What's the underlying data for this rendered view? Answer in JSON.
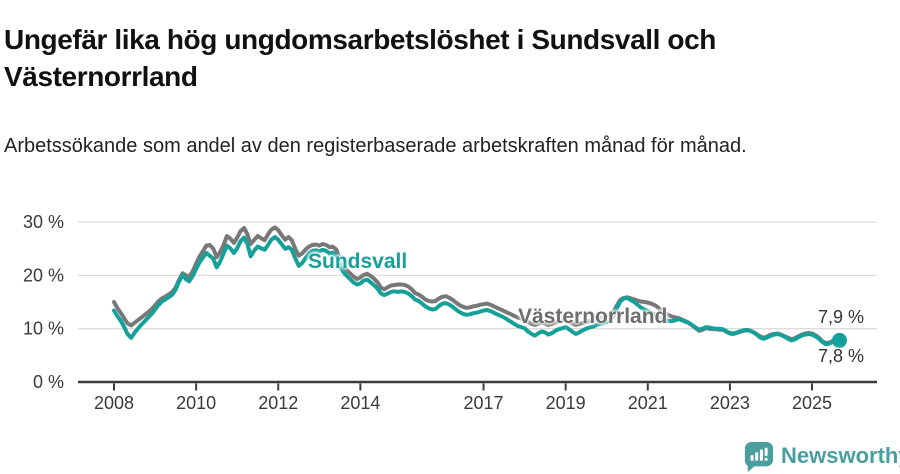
{
  "header": {
    "title": "Ungefär lika hög ungdomsarbetslöshet i Sundsvall och Västernorrland",
    "subtitle": "Arbetssökande som andel av den registerbaserade arbetskraften månad för månad."
  },
  "footer": {
    "brand": "Newsworthy",
    "brand_color": "#4a9e9e"
  },
  "chart_data": {
    "type": "line",
    "unit": "%",
    "grid": "horizontal",
    "grid_color": "#dcdcdc",
    "axis_color": "#3c3c3c",
    "ylim": [
      0,
      32
    ],
    "xlim": [
      2008,
      2026.6
    ],
    "legend_position": "inline-labels",
    "y_ticks": [
      {
        "value": 0,
        "label": "0 %"
      },
      {
        "value": 10,
        "label": "10 %"
      },
      {
        "value": 20,
        "label": "20 %"
      },
      {
        "value": 30,
        "label": "30 %"
      }
    ],
    "x_ticks": [
      {
        "value": 2008,
        "label": "2008"
      },
      {
        "value": 2010,
        "label": "2010"
      },
      {
        "value": 2012,
        "label": "2012"
      },
      {
        "value": 2014,
        "label": "2014"
      },
      {
        "value": 2017,
        "label": "2017"
      },
      {
        "value": 2019,
        "label": "2019"
      },
      {
        "value": 2021,
        "label": "2021"
      },
      {
        "value": 2023,
        "label": "2023"
      },
      {
        "value": 2025,
        "label": "2025"
      }
    ],
    "series": [
      {
        "name": "Sundsvall",
        "color": "#15a199",
        "end_label": "7,8 %",
        "end_value": 7.8
      },
      {
        "name": "Västernorrland",
        "color": "#787878",
        "end_label": "7,9 %",
        "end_value": 7.9
      }
    ],
    "points": [
      [
        2008.0,
        13.4,
        15.0
      ],
      [
        2008.08,
        12.4,
        13.9
      ],
      [
        2008.17,
        11.4,
        12.9
      ],
      [
        2008.25,
        10.3,
        11.9
      ],
      [
        2008.33,
        9.0,
        11.0
      ],
      [
        2008.42,
        8.3,
        10.6
      ],
      [
        2008.5,
        9.2,
        11.1
      ],
      [
        2008.58,
        10.0,
        11.6
      ],
      [
        2008.67,
        10.8,
        12.1
      ],
      [
        2008.75,
        11.4,
        12.6
      ],
      [
        2008.83,
        12.1,
        13.1
      ],
      [
        2008.92,
        12.8,
        13.7
      ],
      [
        2009.0,
        13.6,
        14.4
      ],
      [
        2009.08,
        14.4,
        15.1
      ],
      [
        2009.17,
        15.1,
        15.7
      ],
      [
        2009.25,
        15.5,
        16.0
      ],
      [
        2009.33,
        15.9,
        16.4
      ],
      [
        2009.42,
        16.4,
        16.9
      ],
      [
        2009.5,
        17.3,
        17.7
      ],
      [
        2009.58,
        18.8,
        19.1
      ],
      [
        2009.67,
        20.1,
        20.4
      ],
      [
        2009.75,
        19.3,
        20.0
      ],
      [
        2009.83,
        18.9,
        19.7
      ],
      [
        2009.92,
        19.9,
        20.8
      ],
      [
        2010.0,
        21.2,
        22.2
      ],
      [
        2010.08,
        22.4,
        23.5
      ],
      [
        2010.17,
        23.4,
        24.6
      ],
      [
        2010.25,
        24.2,
        25.6
      ],
      [
        2010.33,
        23.7,
        25.7
      ],
      [
        2010.42,
        23.1,
        25.0
      ],
      [
        2010.5,
        21.5,
        23.4
      ],
      [
        2010.58,
        22.5,
        24.3
      ],
      [
        2010.67,
        24.1,
        25.7
      ],
      [
        2010.75,
        25.6,
        27.4
      ],
      [
        2010.83,
        25.1,
        26.9
      ],
      [
        2010.92,
        24.2,
        26.1
      ],
      [
        2011.0,
        25.1,
        27.1
      ],
      [
        2011.08,
        26.4,
        28.3
      ],
      [
        2011.17,
        27.1,
        28.9
      ],
      [
        2011.25,
        25.9,
        27.7
      ],
      [
        2011.33,
        23.6,
        25.9
      ],
      [
        2011.42,
        24.7,
        26.7
      ],
      [
        2011.5,
        25.4,
        27.4
      ],
      [
        2011.58,
        25.1,
        27.0
      ],
      [
        2011.67,
        24.8,
        26.6
      ],
      [
        2011.75,
        25.7,
        27.7
      ],
      [
        2011.83,
        26.7,
        28.6
      ],
      [
        2011.92,
        27.2,
        29.0
      ],
      [
        2012.0,
        26.7,
        28.5
      ],
      [
        2012.08,
        25.9,
        27.6
      ],
      [
        2012.17,
        25.0,
        26.7
      ],
      [
        2012.25,
        25.3,
        27.2
      ],
      [
        2012.33,
        24.8,
        26.6
      ],
      [
        2012.42,
        23.1,
        24.9
      ],
      [
        2012.5,
        21.8,
        23.7
      ],
      [
        2012.58,
        22.3,
        24.1
      ],
      [
        2012.67,
        23.3,
        24.9
      ],
      [
        2012.75,
        24.1,
        25.4
      ],
      [
        2012.83,
        24.6,
        25.7
      ],
      [
        2012.92,
        24.7,
        25.8
      ],
      [
        2013.0,
        24.5,
        25.6
      ],
      [
        2013.08,
        24.8,
        25.9
      ],
      [
        2013.17,
        24.6,
        25.7
      ],
      [
        2013.25,
        24.1,
        25.3
      ],
      [
        2013.33,
        24.3,
        25.4
      ],
      [
        2013.42,
        23.7,
        24.8
      ],
      [
        2013.5,
        21.9,
        23.0
      ],
      [
        2013.58,
        20.7,
        21.8
      ],
      [
        2013.67,
        19.9,
        21.0
      ],
      [
        2013.75,
        19.3,
        20.4
      ],
      [
        2013.83,
        18.7,
        19.8
      ],
      [
        2013.92,
        18.3,
        19.3
      ],
      [
        2014.0,
        18.5,
        19.6
      ],
      [
        2014.08,
        19.0,
        20.1
      ],
      [
        2014.17,
        19.2,
        20.3
      ],
      [
        2014.25,
        18.7,
        19.9
      ],
      [
        2014.33,
        18.2,
        19.4
      ],
      [
        2014.42,
        17.5,
        18.7
      ],
      [
        2014.5,
        16.6,
        17.7
      ],
      [
        2014.58,
        16.3,
        17.4
      ],
      [
        2014.67,
        16.6,
        17.8
      ],
      [
        2014.75,
        16.9,
        18.1
      ],
      [
        2014.83,
        17.0,
        18.2
      ],
      [
        2014.92,
        16.9,
        18.3
      ],
      [
        2015.0,
        17.0,
        18.3
      ],
      [
        2015.08,
        16.9,
        18.2
      ],
      [
        2015.17,
        16.6,
        17.9
      ],
      [
        2015.25,
        16.1,
        17.4
      ],
      [
        2015.33,
        15.5,
        16.7
      ],
      [
        2015.42,
        15.2,
        16.4
      ],
      [
        2015.5,
        14.7,
        16.0
      ],
      [
        2015.58,
        14.2,
        15.5
      ],
      [
        2015.67,
        13.8,
        15.2
      ],
      [
        2015.75,
        13.6,
        15.1
      ],
      [
        2015.83,
        13.7,
        15.2
      ],
      [
        2015.92,
        14.3,
        15.7
      ],
      [
        2016.0,
        14.7,
        16.0
      ],
      [
        2016.08,
        14.8,
        16.1
      ],
      [
        2016.17,
        14.5,
        15.8
      ],
      [
        2016.25,
        14.1,
        15.4
      ],
      [
        2016.33,
        13.6,
        14.9
      ],
      [
        2016.42,
        13.1,
        14.4
      ],
      [
        2016.5,
        12.8,
        14.1
      ],
      [
        2016.58,
        12.6,
        13.9
      ],
      [
        2016.67,
        12.7,
        14.0
      ],
      [
        2016.75,
        12.9,
        14.2
      ],
      [
        2016.83,
        13.0,
        14.3
      ],
      [
        2016.92,
        13.2,
        14.5
      ],
      [
        2017.0,
        13.4,
        14.6
      ],
      [
        2017.08,
        13.5,
        14.7
      ],
      [
        2017.17,
        13.3,
        14.5
      ],
      [
        2017.25,
        13.0,
        14.2
      ],
      [
        2017.33,
        12.7,
        13.9
      ],
      [
        2017.42,
        12.4,
        13.6
      ],
      [
        2017.5,
        12.1,
        13.3
      ],
      [
        2017.58,
        11.7,
        13.0
      ],
      [
        2017.67,
        11.3,
        12.7
      ],
      [
        2017.75,
        10.9,
        12.4
      ],
      [
        2017.83,
        10.5,
        12.1
      ],
      [
        2017.92,
        10.3,
        11.9
      ],
      [
        2018.0,
        10.1,
        11.7
      ],
      [
        2018.08,
        9.5,
        11.3
      ],
      [
        2018.17,
        9.0,
        10.9
      ],
      [
        2018.25,
        8.7,
        10.7
      ],
      [
        2018.33,
        9.1,
        10.9
      ],
      [
        2018.42,
        9.5,
        11.2
      ],
      [
        2018.5,
        9.3,
        11.0
      ],
      [
        2018.58,
        8.9,
        10.7
      ],
      [
        2018.67,
        9.2,
        10.9
      ],
      [
        2018.75,
        9.6,
        11.2
      ],
      [
        2018.83,
        9.9,
        11.4
      ],
      [
        2018.92,
        10.1,
        11.5
      ],
      [
        2019.0,
        10.3,
        11.6
      ],
      [
        2019.08,
        9.9,
        11.3
      ],
      [
        2019.17,
        9.4,
        11.0
      ],
      [
        2019.25,
        9.0,
        10.7
      ],
      [
        2019.33,
        9.3,
        10.9
      ],
      [
        2019.42,
        9.7,
        11.1
      ],
      [
        2019.5,
        10.0,
        11.3
      ],
      [
        2019.58,
        10.2,
        11.5
      ],
      [
        2019.67,
        10.4,
        11.7
      ],
      [
        2019.75,
        10.7,
        11.9
      ],
      [
        2019.83,
        10.9,
        12.0
      ],
      [
        2019.92,
        11.1,
        12.2
      ],
      [
        2020.0,
        11.3,
        12.4
      ],
      [
        2020.08,
        11.6,
        12.6
      ],
      [
        2020.17,
        12.5,
        13.3
      ],
      [
        2020.25,
        13.9,
        14.4
      ],
      [
        2020.33,
        15.1,
        15.4
      ],
      [
        2020.42,
        15.7,
        15.8
      ],
      [
        2020.5,
        15.8,
        15.9
      ],
      [
        2020.58,
        15.4,
        15.7
      ],
      [
        2020.67,
        15.0,
        15.5
      ],
      [
        2020.75,
        14.5,
        15.3
      ],
      [
        2020.83,
        14.0,
        15.1
      ],
      [
        2020.92,
        13.6,
        15.0
      ],
      [
        2021.0,
        13.3,
        14.9
      ],
      [
        2021.08,
        13.0,
        14.7
      ],
      [
        2021.17,
        12.7,
        14.4
      ],
      [
        2021.25,
        12.3,
        14.0
      ],
      [
        2021.33,
        12.0,
        13.5
      ],
      [
        2021.42,
        11.7,
        13.0
      ],
      [
        2021.5,
        11.5,
        12.6
      ],
      [
        2021.58,
        11.4,
        12.3
      ],
      [
        2021.67,
        11.6,
        12.1
      ],
      [
        2021.75,
        11.8,
        12.0
      ],
      [
        2021.83,
        11.6,
        11.7
      ],
      [
        2021.92,
        11.3,
        11.4
      ],
      [
        2022.0,
        11.1,
        11.1
      ],
      [
        2022.08,
        10.7,
        10.6
      ],
      [
        2022.17,
        10.2,
        10.1
      ],
      [
        2022.25,
        9.8,
        9.6
      ],
      [
        2022.33,
        10.0,
        9.8
      ],
      [
        2022.42,
        10.3,
        10.1
      ],
      [
        2022.5,
        10.2,
        10.0
      ],
      [
        2022.58,
        10.1,
        9.9
      ],
      [
        2022.67,
        10.0,
        9.9
      ],
      [
        2022.75,
        10.0,
        9.8
      ],
      [
        2022.83,
        9.9,
        9.8
      ],
      [
        2022.92,
        9.5,
        9.4
      ],
      [
        2023.0,
        9.2,
        9.1
      ],
      [
        2023.08,
        9.1,
        9.0
      ],
      [
        2023.17,
        9.3,
        9.2
      ],
      [
        2023.25,
        9.5,
        9.4
      ],
      [
        2023.33,
        9.7,
        9.6
      ],
      [
        2023.42,
        9.8,
        9.7
      ],
      [
        2023.5,
        9.6,
        9.6
      ],
      [
        2023.58,
        9.3,
        9.3
      ],
      [
        2023.67,
        8.8,
        8.9
      ],
      [
        2023.75,
        8.3,
        8.5
      ],
      [
        2023.83,
        8.1,
        8.3
      ],
      [
        2023.92,
        8.4,
        8.6
      ],
      [
        2024.0,
        8.7,
        8.9
      ],
      [
        2024.08,
        8.9,
        9.0
      ],
      [
        2024.17,
        9.0,
        9.1
      ],
      [
        2024.25,
        8.8,
        8.9
      ],
      [
        2024.33,
        8.5,
        8.6
      ],
      [
        2024.42,
        8.1,
        8.3
      ],
      [
        2024.5,
        7.8,
        8.0
      ],
      [
        2024.58,
        8.0,
        8.2
      ],
      [
        2024.67,
        8.4,
        8.6
      ],
      [
        2024.75,
        8.7,
        8.9
      ],
      [
        2024.83,
        8.9,
        9.1
      ],
      [
        2024.92,
        9.0,
        9.2
      ],
      [
        2025.0,
        8.9,
        9.1
      ],
      [
        2025.08,
        8.6,
        8.8
      ],
      [
        2025.17,
        8.1,
        8.3
      ],
      [
        2025.25,
        7.5,
        7.7
      ],
      [
        2025.33,
        7.1,
        7.3
      ],
      [
        2025.42,
        7.2,
        7.4
      ],
      [
        2025.5,
        7.5,
        7.7
      ],
      [
        2025.58,
        7.7,
        7.85
      ],
      [
        2025.67,
        7.8,
        7.9
      ]
    ]
  }
}
